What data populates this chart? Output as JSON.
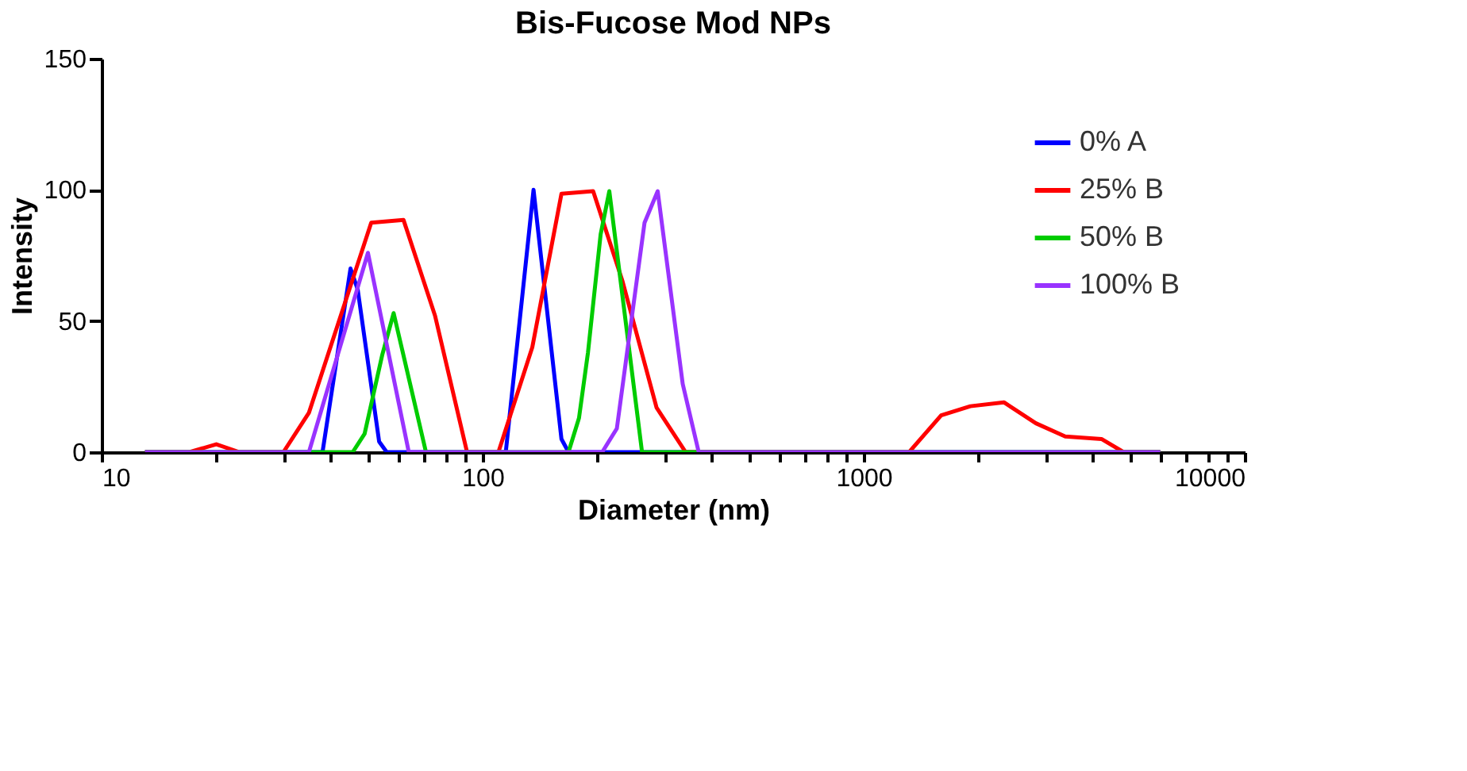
{
  "chart_data": {
    "type": "line",
    "title": "Bis-Fucose Mod NPs",
    "xlabel": "Diameter (nm)",
    "ylabel": "Intensity",
    "log": "x",
    "xlim": [
      10,
      10000
    ],
    "xticks": [
      10,
      {
        "value": 20,
        "label": null
      },
      {
        "value": 30,
        "label": null
      },
      {
        "value": 40,
        "label": null
      },
      {
        "value": 50,
        "label": null
      },
      {
        "value": 60,
        "label": null
      },
      {
        "value": 70,
        "label": null
      },
      {
        "value": 80,
        "label": null
      },
      {
        "value": 90,
        "label": null
      },
      100,
      {
        "value": 200,
        "label": null
      },
      {
        "value": 300,
        "label": null
      },
      {
        "value": 400,
        "label": null
      },
      {
        "value": 500,
        "label": null
      },
      {
        "value": 600,
        "label": null
      },
      {
        "value": 700,
        "label": null
      },
      {
        "value": 800,
        "label": null
      },
      {
        "value": 900,
        "label": null
      },
      1000,
      {
        "value": 2000,
        "label": null
      },
      {
        "value": 3000,
        "label": null
      },
      {
        "value": 4000,
        "label": null
      },
      {
        "value": 5000,
        "label": null
      },
      {
        "value": 6000,
        "label": null
      },
      {
        "value": 7000,
        "label": null
      },
      {
        "value": 8000,
        "label": null
      },
      {
        "value": 9000,
        "label": null
      },
      10000
    ],
    "ylim": [
      0,
      150
    ],
    "yticks": [
      0,
      50,
      100,
      150
    ],
    "grid": false,
    "legend": "top right",
    "marker": "none",
    "line_style": "solid",
    "series": [
      {
        "name": "0% A",
        "color": "#0000ff",
        "x": [
          13,
          38,
          45,
          47,
          53.5,
          56,
          115,
          136,
          161,
          168,
          6000
        ],
        "values": [
          0,
          0,
          70,
          62,
          4,
          0,
          0,
          100,
          5,
          0,
          0
        ]
      },
      {
        "name": "25% B",
        "color": "#ff0000",
        "x": [
          13,
          17,
          20,
          23,
          30,
          35,
          51,
          62,
          75,
          91,
          110,
          135,
          161,
          195,
          233,
          286,
          341,
          1316,
          1597,
          1905,
          2333,
          2831,
          3380,
          4207,
          4810,
          6000
        ],
        "values": [
          0,
          0,
          3,
          0,
          0,
          15,
          87.5,
          88.5,
          52,
          0,
          0,
          40,
          98.5,
          99.5,
          65,
          17,
          0,
          0,
          14,
          17.5,
          19,
          11,
          6,
          5,
          0,
          0
        ]
      },
      {
        "name": "50% B",
        "color": "#00cc00",
        "x": [
          13,
          45.6,
          49,
          54.5,
          58.4,
          71,
          168,
          179,
          189,
          204,
          215,
          262,
          6000
        ],
        "values": [
          0,
          0,
          7,
          37,
          53,
          0,
          0,
          13,
          38,
          83,
          99.5,
          0,
          0
        ]
      },
      {
        "name": "100% B",
        "color": "#9933ff",
        "x": [
          13,
          35,
          50,
          64,
          206,
          225,
          266,
          288,
          335,
          369,
          6000
        ],
        "values": [
          0,
          0,
          76,
          0,
          0,
          9,
          87.5,
          99.5,
          26,
          0,
          0
        ]
      }
    ]
  }
}
